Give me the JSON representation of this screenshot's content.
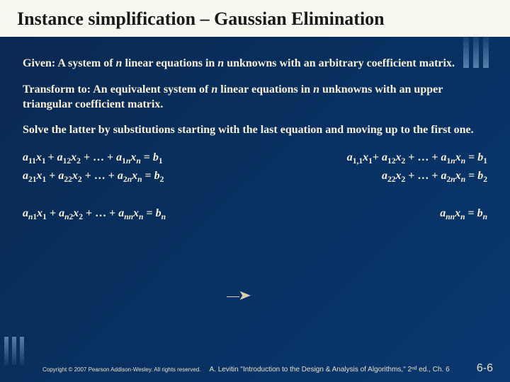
{
  "title": "Instance simplification – Gaussian Elimination",
  "para1_a": "Given: A system of ",
  "para1_b": " linear equations in ",
  "para1_c": " unknowns with an arbitrary coefficient matrix.",
  "para2_a": "Transform to: An equivalent system of ",
  "para2_b": " linear equations in ",
  "para2_c": " unknowns with an upper triangular coefficient matrix.",
  "para3": "Solve the latter by substitutions starting with the last equation  and moving up to the first one.",
  "n": "n",
  "footer": {
    "copyright": "Copyright © 2007 Pearson Addison-Wesley. All rights reserved.",
    "citation": "A. Levitin \"Introduction to the Design & Analysis of Algorithms,\" 2ⁿᵈ ed., Ch. 6",
    "page": "6-6"
  },
  "colors": {
    "bg_grad_start": "#0a2850",
    "bg_grad_end": "#0a3870",
    "title_bg": "#f8f8f0",
    "text": "#f8f0d8",
    "hash": "#8cb4dc"
  }
}
